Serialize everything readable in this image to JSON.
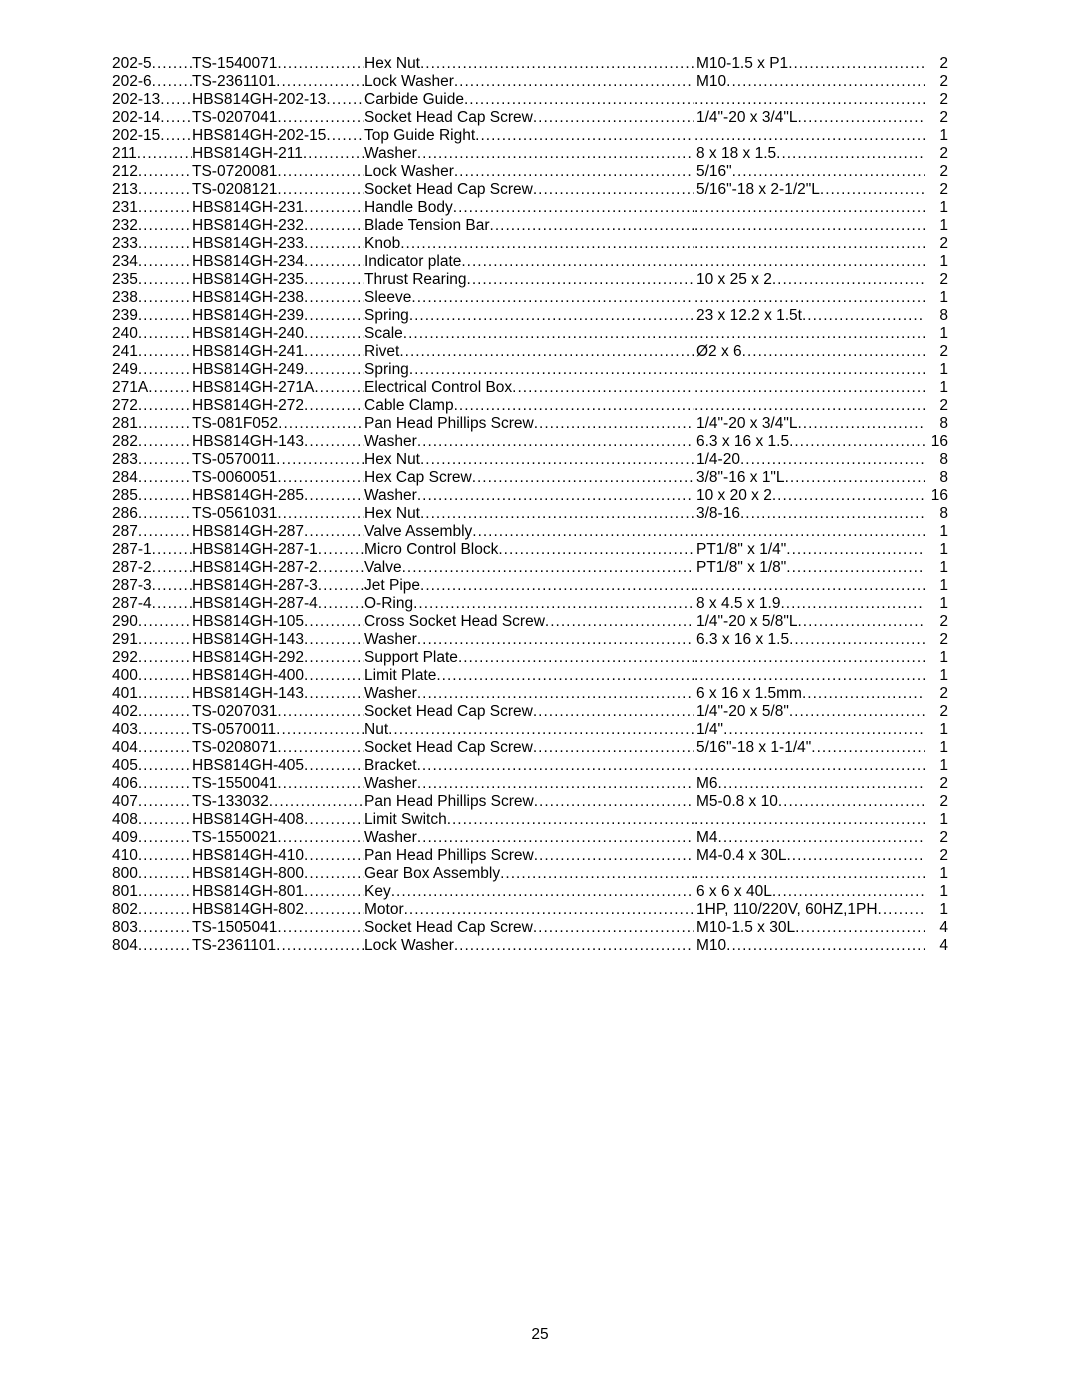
{
  "page_number": "25",
  "rows": [
    {
      "index": "202-5",
      "part": "TS-1540071",
      "desc": "Hex Nut",
      "size": "M10-1.5 x P1",
      "qty": "2"
    },
    {
      "index": "202-6",
      "part": "TS-2361101",
      "desc": "Lock Washer",
      "size": "M10",
      "qty": "2"
    },
    {
      "index": "202-13",
      "part": "HBS814GH-202-13",
      "desc": "Carbide Guide",
      "size": "",
      "qty": "2"
    },
    {
      "index": "202-14",
      "part": "TS-0207041",
      "desc": "Socket Head Cap Screw",
      "size": "1/4\"-20 x 3/4\"L",
      "qty": "2"
    },
    {
      "index": "202-15",
      "part": "HBS814GH-202-15",
      "desc": "Top Guide Right",
      "size": "",
      "qty": "1"
    },
    {
      "index": "211",
      "part": "HBS814GH-211",
      "desc": "Washer",
      "size": "8 x 18 x 1.5",
      "qty": "2"
    },
    {
      "index": "212",
      "part": "TS-0720081",
      "desc": "Lock Washer",
      "size": "5/16\"",
      "qty": "2"
    },
    {
      "index": "213",
      "part": "TS-0208121",
      "desc": "Socket Head Cap Screw",
      "size": "5/16\"-18 x 2-1/2\"L",
      "qty": "2"
    },
    {
      "index": "231",
      "part": "HBS814GH-231",
      "desc": "Handle Body",
      "size": "",
      "qty": "1"
    },
    {
      "index": "232",
      "part": "HBS814GH-232",
      "desc": "Blade Tension Bar",
      "size": "",
      "qty": "1"
    },
    {
      "index": "233",
      "part": "HBS814GH-233",
      "desc": "Knob",
      "size": "",
      "qty": "2"
    },
    {
      "index": "234",
      "part": "HBS814GH-234",
      "desc": "Indicator plate",
      "size": "",
      "qty": "1"
    },
    {
      "index": "235",
      "part": "HBS814GH-235",
      "desc": "Thrust Rearing",
      "size": "10 x 25 x 2",
      "qty": "2"
    },
    {
      "index": "238",
      "part": "HBS814GH-238",
      "desc": "Sleeve",
      "size": "",
      "qty": "1"
    },
    {
      "index": "239",
      "part": "HBS814GH-239",
      "desc": "Spring",
      "size": "23 x 12.2 x 1.5t",
      "qty": "8"
    },
    {
      "index": "240",
      "part": "HBS814GH-240",
      "desc": "Scale",
      "size": "",
      "qty": "1"
    },
    {
      "index": "241",
      "part": "HBS814GH-241",
      "desc": "Rivet",
      "size": "Ø2 x 6",
      "qty": "2"
    },
    {
      "index": "249",
      "part": "HBS814GH-249",
      "desc": "Spring",
      "size": "",
      "qty": "1"
    },
    {
      "index": "271A",
      "part": "HBS814GH-271A",
      "desc": "Electrical Control Box",
      "size": "",
      "qty": "1"
    },
    {
      "index": "272",
      "part": "HBS814GH-272",
      "desc": "Cable Clamp",
      "size": "",
      "qty": "2"
    },
    {
      "index": "281",
      "part": "TS-081F052",
      "desc": "Pan Head Phillips Screw",
      "size": "1/4\"-20 x 3/4\"L",
      "qty": "8"
    },
    {
      "index": "282",
      "part": "HBS814GH-143",
      "desc": "Washer",
      "size": "6.3 x 16 x 1.5",
      "qty": "16"
    },
    {
      "index": "283",
      "part": "TS-0570011",
      "desc": "Hex Nut",
      "size": "1/4-20",
      "qty": "8"
    },
    {
      "index": "284",
      "part": "TS-0060051",
      "desc": "Hex Cap Screw",
      "size": "3/8\"-16 x 1\"L",
      "qty": "8"
    },
    {
      "index": "285",
      "part": "HBS814GH-285",
      "desc": "Washer",
      "size": "10 x 20 x 2",
      "qty": "16"
    },
    {
      "index": "286",
      "part": "TS-0561031",
      "desc": "Hex Nut",
      "size": "3/8-16",
      "qty": "8"
    },
    {
      "index": "287",
      "part": "HBS814GH-287",
      "desc": "Valve Assembly",
      "size": "",
      "qty": "1"
    },
    {
      "index": "287-1",
      "part": "HBS814GH-287-1",
      "desc": "Micro Control Block",
      "size": "PT1/8\" x 1/4\"",
      "qty": "1"
    },
    {
      "index": "287-2",
      "part": "HBS814GH-287-2",
      "desc": "Valve",
      "size": "PT1/8\" x 1/8\"",
      "qty": "1"
    },
    {
      "index": "287-3",
      "part": "HBS814GH-287-3",
      "desc": "Jet Pipe",
      "size": "",
      "qty": "1"
    },
    {
      "index": "287-4",
      "part": "HBS814GH-287-4",
      "desc": "O-Ring",
      "size": "8 x 4.5 x 1.9",
      "qty": "1"
    },
    {
      "index": "290",
      "part": "HBS814GH-105",
      "desc": "Cross Socket Head Screw",
      "size": "1/4\"-20 x 5/8\"L",
      "qty": "2"
    },
    {
      "index": "291",
      "part": "HBS814GH-143",
      "desc": "Washer",
      "size": "6.3 x 16 x 1.5",
      "qty": "2"
    },
    {
      "index": "292",
      "part": "HBS814GH-292",
      "desc": "Support Plate",
      "size": "",
      "qty": "1"
    },
    {
      "index": "400",
      "part": "HBS814GH-400",
      "desc": "Limit Plate",
      "size": "",
      "qty": "1"
    },
    {
      "index": "401",
      "part": "HBS814GH-143",
      "desc": "Washer",
      "size": "6 x 16 x 1.5mm",
      "qty": "2"
    },
    {
      "index": "402",
      "part": "TS-0207031",
      "desc": "Socket Head Cap Screw",
      "size": "1/4\"-20 x 5/8\"",
      "qty": "2"
    },
    {
      "index": "403",
      "part": "TS-0570011",
      "desc": "Nut",
      "size": "1/4\"",
      "qty": "1"
    },
    {
      "index": "404",
      "part": "TS-0208071",
      "desc": "Socket Head Cap Screw",
      "size": "5/16\"-18 x 1-1/4\"",
      "qty": "1"
    },
    {
      "index": "405",
      "part": "HBS814GH-405",
      "desc": "Bracket",
      "size": "",
      "qty": "1"
    },
    {
      "index": "406",
      "part": "TS-1550041",
      "desc": "Washer",
      "size": "M6",
      "qty": "2"
    },
    {
      "index": "407",
      "part": "TS-133032",
      "desc": "Pan Head Phillips Screw",
      "size": "M5-0.8 x 10",
      "qty": "2"
    },
    {
      "index": "408",
      "part": "HBS814GH-408",
      "desc": "Limit Switch",
      "size": "",
      "qty": "1"
    },
    {
      "index": "409",
      "part": "TS-1550021",
      "desc": "Washer",
      "size": "M4",
      "qty": "2"
    },
    {
      "index": "410",
      "part": "HBS814GH-410",
      "desc": "Pan Head Phillips Screw",
      "size": "M4-0.4 x 30L",
      "qty": "2"
    },
    {
      "index": "800",
      "part": "HBS814GH-800",
      "desc": "Gear Box Assembly",
      "size": "",
      "qty": "1"
    },
    {
      "index": "801",
      "part": "HBS814GH-801",
      "desc": "Key",
      "size": "6 x 6 x 40L",
      "qty": "1"
    },
    {
      "index": "802",
      "part": "HBS814GH-802",
      "desc": "Motor",
      "size": "1HP, 110/220V, 60HZ,1PH",
      "qty": "1"
    },
    {
      "index": "803",
      "part": "TS-1505041",
      "desc": "Socket Head Cap Screw",
      "size": "M10-1.5 x 30L",
      "qty": "4"
    },
    {
      "index": "804",
      "part": "TS-2361101",
      "desc": "Lock Washer",
      "size": "M10",
      "qty": "4"
    }
  ]
}
